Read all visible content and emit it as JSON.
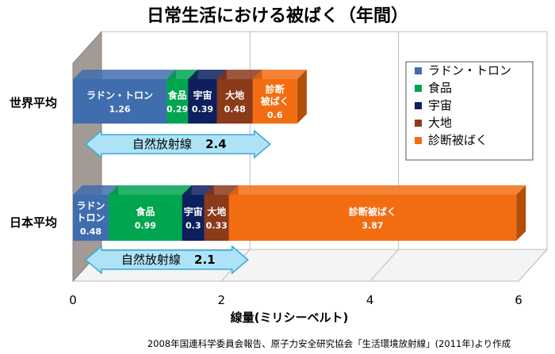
{
  "chart_data": {
    "type": "bar",
    "orientation": "horizontal",
    "stacked": true,
    "title": "日常生活における被ばく（年間）",
    "xlabel": "線量(ミリシーベルト)",
    "xlim": [
      0,
      6
    ],
    "xticks": [
      "0",
      "2",
      "4",
      "6"
    ],
    "categories": [
      "世界平均",
      "日本平均"
    ],
    "series": [
      {
        "name": "ラドン・トロン",
        "color": "#3F6DAE",
        "side_color": "#2B4F80",
        "labels": [
          "ラドン・トロン",
          "ラドン|トロン"
        ],
        "values": [
          1.26,
          0.48
        ],
        "value_labels": [
          "1.26",
          "0.48"
        ]
      },
      {
        "name": "食品",
        "color": "#00A550",
        "side_color": "#007A3B",
        "labels": [
          "食品",
          "食品"
        ],
        "values": [
          0.29,
          0.99
        ],
        "value_labels": [
          "0.29",
          "0.99"
        ]
      },
      {
        "name": "宇宙",
        "color": "#0D1F5C",
        "side_color": "#081540",
        "labels": [
          "宇宙",
          "宇宙"
        ],
        "values": [
          0.39,
          0.3
        ],
        "value_labels": [
          "0.39",
          "0.3"
        ]
      },
      {
        "name": "大地",
        "color": "#8B3A1A",
        "side_color": "#5E2610",
        "labels": [
          "大地",
          "大地"
        ],
        "values": [
          0.48,
          0.33
        ],
        "value_labels": [
          "0.48",
          "0.33"
        ]
      },
      {
        "name": "診断被ばく",
        "color": "#F26D12",
        "side_color": "#B24E08",
        "labels": [
          "診断|被ばく",
          "診断被ばく"
        ],
        "values": [
          0.6,
          3.87
        ],
        "value_labels": [
          "0.6",
          "3.87"
        ]
      }
    ],
    "annotations": [
      {
        "category": "世界平均",
        "label": "自然放射線",
        "value": "2.4"
      },
      {
        "category": "日本平均",
        "label": "自然放射線",
        "value": "2.1"
      }
    ],
    "legend_position": "right",
    "grid": true,
    "source": "2008年国連科学委員会報告、原子力安全研究協会「生活環境放射線」(2011年)より作成"
  }
}
